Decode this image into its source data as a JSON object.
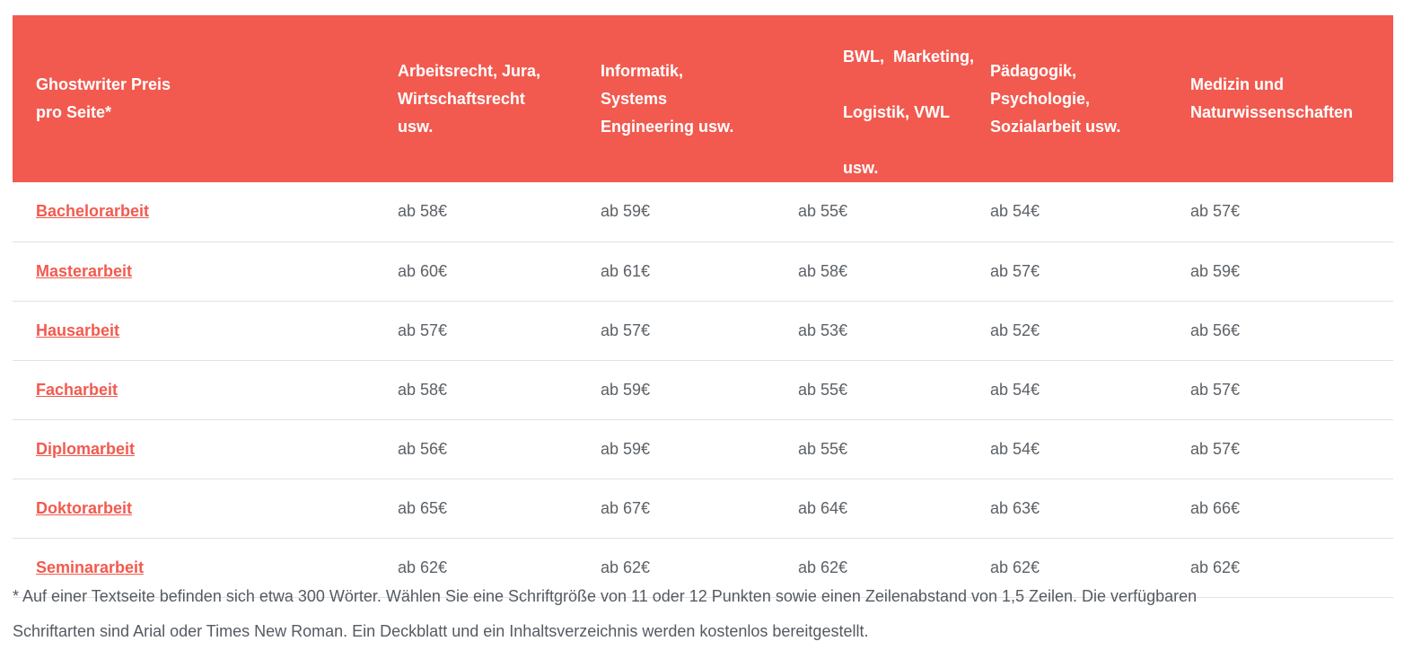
{
  "table": {
    "headers": [
      [
        "Ghostwriter Preis",
        "pro Seite*"
      ],
      [
        "Arbeitsrecht, Jura,",
        "Wirtschaftsrecht",
        "usw."
      ],
      [
        "Informatik,",
        "Systems",
        "Engineering usw."
      ],
      [
        "BWL,  Marketing,",
        "Logistik, VWL",
        "usw."
      ],
      [
        "Pädagogik,",
        "Psychologie,",
        "Sozialarbeit usw."
      ],
      [
        "Medizin und",
        "Naturwissenschaften"
      ]
    ],
    "rows": [
      {
        "label": "Bachelorarbeit",
        "values": [
          "ab 58€",
          "ab 59€",
          "ab 55€",
          "ab 54€",
          "ab 57€"
        ]
      },
      {
        "label": "Masterarbeit",
        "values": [
          "ab 60€",
          "ab 61€",
          "ab 58€",
          "ab 57€",
          "ab 59€"
        ]
      },
      {
        "label": "Hausarbeit",
        "values": [
          "ab 57€",
          "ab 57€",
          "ab 53€",
          "ab 52€",
          "ab 56€"
        ]
      },
      {
        "label": "Facharbeit",
        "values": [
          "ab 58€",
          "ab 59€",
          "ab 55€",
          "ab 54€",
          "ab 57€"
        ]
      },
      {
        "label": "Diplomarbeit",
        "values": [
          "ab 56€",
          "ab 59€",
          "ab 55€",
          "ab 54€",
          "ab 57€"
        ]
      },
      {
        "label": "Doktorarbeit",
        "values": [
          "ab 65€",
          "ab 67€",
          "ab 64€",
          "ab 63€",
          "ab 66€"
        ]
      },
      {
        "label": "Seminararbeit",
        "values": [
          "ab 62€",
          "ab 62€",
          "ab 62€",
          "ab 62€",
          "ab 62€"
        ]
      }
    ]
  },
  "footnote": [
    "* Auf einer Textseite befinden sich etwa 300 Wörter. Wählen Sie eine Schriftgröße von 11 oder 12 Punkten sowie einen Zeilenabstand von 1,5 Zeilen. Die verfügbaren",
    "Schriftarten sind Arial oder Times New Roman. Ein Deckblatt und ein Inhaltsverzeichnis werden kostenlos bereitgestellt."
  ],
  "colors": {
    "header_bg": "#f25a4f",
    "link": "#f25a4f",
    "text": "#555a61"
  }
}
